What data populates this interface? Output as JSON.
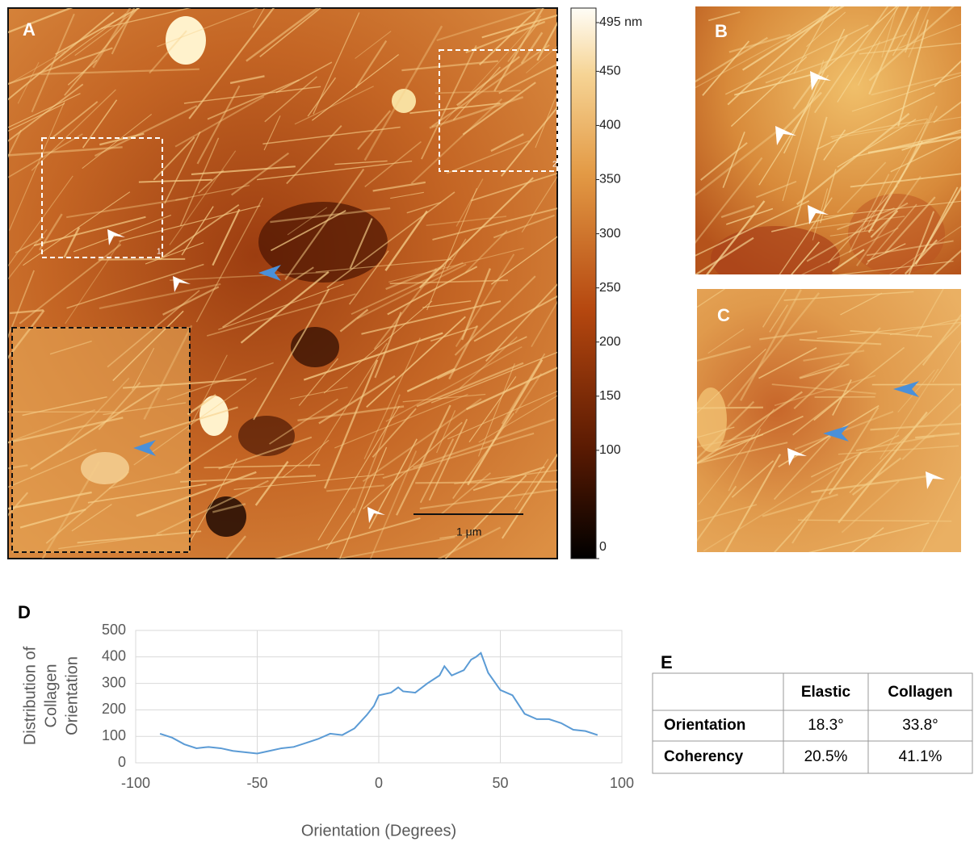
{
  "panels": {
    "a": "A",
    "b": "B",
    "c": "C",
    "d": "D",
    "e": "E"
  },
  "scale_bar": "1 μm",
  "colorbar": {
    "lim": [
      0,
      495
    ],
    "ticks": [
      {
        "value": 495,
        "label": "495 nm"
      },
      450,
      400,
      350,
      300,
      250,
      200,
      150,
      100,
      0
    ]
  },
  "chart_data": {
    "type": "line",
    "xlabel": "Orientation (Degrees)",
    "ylabel": [
      "Distribution of",
      "Collagen",
      "Orientation"
    ],
    "x": [
      -90,
      -85,
      -80,
      -75,
      -70,
      -65,
      -60,
      -55,
      -50,
      -45,
      -40,
      -35,
      -30,
      -25,
      -20,
      -15,
      -10,
      -5,
      -2,
      0,
      5,
      8,
      10,
      15,
      20,
      25,
      27,
      30,
      35,
      38,
      40,
      42,
      45,
      50,
      55,
      60,
      65,
      70,
      75,
      80,
      85,
      90
    ],
    "values": [
      110,
      95,
      70,
      55,
      60,
      55,
      45,
      40,
      35,
      45,
      55,
      60,
      75,
      90,
      110,
      105,
      130,
      180,
      215,
      255,
      265,
      285,
      270,
      265,
      300,
      330,
      365,
      330,
      350,
      390,
      400,
      415,
      340,
      275,
      255,
      185,
      165,
      165,
      150,
      125,
      120,
      105
    ],
    "color": "#5b9bd5",
    "xlim": [
      -100,
      100
    ],
    "xticks": [
      -100,
      -50,
      0,
      50,
      100
    ],
    "ylim": [
      0,
      500
    ],
    "yticks": [
      0,
      100,
      200,
      300,
      400,
      500
    ],
    "grid": true
  },
  "table": {
    "columns": [
      "Elastic",
      "Collagen"
    ],
    "rows": [
      [
        "Orientation",
        "18.3°",
        "33.8°"
      ],
      [
        "Coherency",
        "20.5%",
        "41.1%"
      ]
    ]
  }
}
